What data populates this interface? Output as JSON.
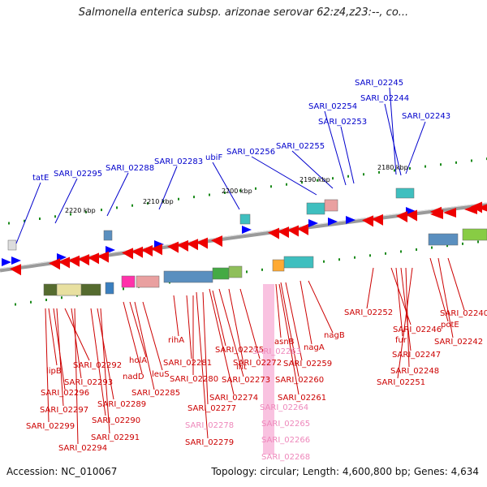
{
  "header": {
    "title": "Salmonella enterica subsp. arizonae serovar 62:z4,z23:--, co..."
  },
  "footer": {
    "accession": "Accession: NC_010067",
    "stats": "Topology: circular; Length: 4,600,800 bp; Genes: 4,634"
  },
  "colors": {
    "top_label": "#0000cc",
    "bottom_label": "#cc0000",
    "pseudo_label": "#ee88bb",
    "backbone": "#888888"
  },
  "scale_labels": [
    "2220 kbp",
    "2210 kbp",
    "2200 kbp",
    "2190 kbp",
    "2180 kbp"
  ],
  "top_labels": [
    "tatE",
    "SARI_02295",
    "SARI_02288",
    "SARI_02283",
    "ubiF",
    "SARI_02256",
    "SARI_02255",
    "SARI_02254",
    "SARI_02253",
    "SARI_02245",
    "SARI_02244",
    "SARI_02243"
  ],
  "bottom_labels": [
    "lipB",
    "SARI_02292",
    "SARI_02293",
    "SARI_02296",
    "SARI_02297",
    "SARI_02289",
    "SARI_02299",
    "SARI_02290",
    "SARI_02291",
    "SARI_02294",
    "holA",
    "nadD",
    "leuS",
    "SARI_02285",
    "rihA",
    "SARI_02281",
    "SARI_02280",
    "SARI_02277",
    "SARI_02279",
    "SARI_02275",
    "int",
    "SARI_02273",
    "SARI_02274",
    "SARI_02272",
    "asnB",
    "SARI_02259",
    "nagA",
    "SARI_02260",
    "SARI_02261",
    "nagB",
    "SARI_02252",
    "SARI_02246",
    "fur",
    "SARI_02247",
    "SARI_02248",
    "SARI_02251",
    "potE",
    "SARI_02242",
    "SARI_02240"
  ],
  "pseudo_labels": [
    "SARI_02263",
    "SARI_02278",
    "SARI_02264",
    "SARI_02265",
    "SARI_02266",
    "SARI_02268"
  ]
}
